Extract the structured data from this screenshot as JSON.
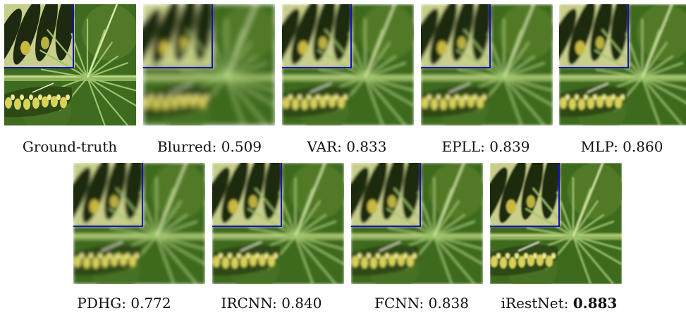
{
  "figure": {
    "panels": [
      {
        "id": "ground-truth",
        "label": "Ground-truth",
        "score": "",
        "bold_score": false,
        "blur": 0
      },
      {
        "id": "blurred",
        "label": "Blurred:",
        "score": "0.509",
        "bold_score": false,
        "blur": 4
      },
      {
        "id": "var",
        "label": "VAR:",
        "score": "0.833",
        "bold_score": false,
        "blur": 2
      },
      {
        "id": "epll",
        "label": "EPLL:",
        "score": "0.839",
        "bold_score": false,
        "blur": 2
      },
      {
        "id": "mlp",
        "label": "MLP:",
        "score": "0.860",
        "bold_score": false,
        "blur": 1.5
      },
      {
        "id": "pdhg",
        "label": "PDHG:",
        "score": "0.772",
        "bold_score": false,
        "blur": 2.5
      },
      {
        "id": "ircnn",
        "label": "IRCNN:",
        "score": "0.840",
        "bold_score": false,
        "blur": 1.8
      },
      {
        "id": "fcnn",
        "label": "FCNN:",
        "score": "0.838",
        "bold_score": false,
        "blur": 1.8
      },
      {
        "id": "irestnet",
        "label": "iRestNet:",
        "score": "0.883",
        "bold_score": true,
        "blur": 1
      }
    ],
    "colors": {
      "background_green": "#3e6b1f",
      "inset_border": "#1010c8",
      "wing_dark": "#1e2a10",
      "wing_light": "#c8cf8a",
      "stem": "#8fb05a",
      "caterpillar_yellow": "#d8d25a"
    }
  }
}
